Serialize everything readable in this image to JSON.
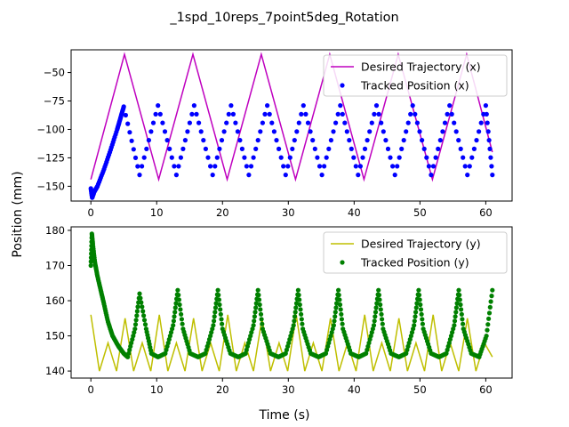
{
  "chart_data": {
    "title": "_1spd_10reps_7point5deg_Rotation",
    "ylabel": "Position (mm)",
    "xlabel": "Time (s)",
    "subplots": [
      {
        "id": "x",
        "type": "line+scatter",
        "xlim": [
          -3,
          64
        ],
        "ylim": [
          -163,
          -30
        ],
        "xticks": [
          0,
          10,
          20,
          30,
          40,
          50,
          60
        ],
        "yticks": [
          -150,
          -125,
          -100,
          -75,
          -50
        ],
        "legend_position": "upper-right",
        "series": [
          {
            "name": "Desired Trajectory (x)",
            "kind": "line",
            "color": "#bf00bf",
            "x": [
              0,
              5.1,
              10.3,
              15.5,
              20.7,
              25.9,
              31.1,
              36.3,
              41.5,
              46.7,
              51.9,
              57.1,
              61.0
            ],
            "y": [
              -144,
              -34,
              -144,
              -34,
              -144,
              -34,
              -144,
              -34,
              -144,
              -34,
              -144,
              -34,
              -120
            ]
          },
          {
            "name": "Tracked Position (x)",
            "kind": "points",
            "color": "#0000ff",
            "x": [
              0,
              0.2,
              0.5,
              1.0,
              2.0,
              3.0,
              4.0,
              4.5,
              5.0,
              7.4,
              10.2,
              13.0,
              15.7,
              18.5,
              21.3,
              24.0,
              26.8,
              29.6,
              32.3,
              35.1,
              37.9,
              40.6,
              43.4,
              46.2,
              48.9,
              51.7,
              54.5,
              57.2,
              60.0,
              61.0
            ],
            "y": [
              -152,
              -160,
              -155,
              -150,
              -135,
              -118,
              -100,
              -90,
              -80,
              -140,
              -79,
              -140,
              -79,
              -140,
              -79,
              -140,
              -79,
              -140,
              -79,
              -140,
              -79,
              -140,
              -79,
              -140,
              -79,
              -140,
              -79,
              -140,
              -79,
              -140
            ]
          }
        ]
      },
      {
        "id": "y",
        "type": "line+scatter",
        "xlim": [
          -3,
          64
        ],
        "ylim": [
          138,
          181
        ],
        "xticks": [
          0,
          10,
          20,
          30,
          40,
          50,
          60
        ],
        "yticks": [
          140,
          150,
          160,
          170,
          180
        ],
        "legend_position": "upper-right",
        "series": [
          {
            "name": "Desired Trajectory (y)",
            "kind": "line",
            "color": "#bfbf00",
            "x": [
              0,
              1.3,
              2.6,
              3.9,
              5.2,
              6.5,
              7.8,
              9.1,
              10.4,
              11.7,
              13.0,
              14.3,
              15.6,
              16.9,
              18.2,
              19.5,
              20.8,
              22.1,
              23.4,
              24.7,
              26.0,
              27.3,
              28.6,
              29.9,
              31.2,
              32.5,
              33.8,
              35.1,
              36.4,
              37.7,
              39.0,
              40.3,
              41.6,
              42.9,
              44.2,
              45.5,
              46.8,
              48.1,
              49.4,
              50.7,
              52.0,
              53.3,
              54.6,
              55.9,
              57.2,
              58.5,
              59.8,
              61.0
            ],
            "y": [
              156,
              140,
              148,
              140,
              155,
              140,
              148,
              140,
              156,
              140,
              148,
              140,
              155,
              140,
              148,
              140,
              156,
              140,
              148,
              140,
              155,
              140,
              148,
              140,
              156,
              140,
              148,
              140,
              155,
              140,
              148,
              140,
              156,
              140,
              148,
              140,
              155,
              140,
              148,
              140,
              156,
              140,
              148,
              140,
              155,
              140,
              148,
              144
            ]
          },
          {
            "name": "Tracked Position (y)",
            "kind": "points",
            "color": "#008000",
            "x": [
              0,
              0.15,
              0.3,
              0.6,
              1.0,
              1.5,
              2.0,
              2.6,
              3.3,
              4.2,
              5.0,
              5.6,
              6.7,
              7.4,
              8.4,
              9.2,
              10.2,
              11.3,
              12.5,
              13.2,
              14.0,
              15.1,
              16.3,
              17.4,
              18.6,
              19.3,
              20.0,
              21.2,
              22.4,
              23.5,
              24.7,
              25.4,
              26.1,
              27.3,
              28.5,
              29.6,
              30.8,
              31.5,
              32.2,
              33.4,
              34.6,
              35.7,
              36.9,
              37.6,
              38.3,
              39.5,
              40.7,
              41.8,
              43.0,
              43.7,
              44.4,
              45.6,
              46.8,
              47.9,
              49.1,
              49.8,
              50.5,
              51.7,
              52.9,
              54.0,
              55.2,
              55.9,
              56.6,
              57.8,
              59.0,
              60.1,
              61.0
            ],
            "y": [
              170,
              179,
              176,
              171,
              167,
              163,
              159,
              154,
              150,
              147,
              145,
              144,
              152,
              162,
              152,
              145,
              144,
              145,
              153,
              163,
              152,
              145,
              144,
              145,
              153,
              163,
              152,
              145,
              144,
              145,
              153,
              163,
              152,
              145,
              144,
              145,
              153,
              163,
              152,
              145,
              144,
              145,
              153,
              163,
              152,
              145,
              144,
              145,
              153,
              163,
              152,
              145,
              144,
              145,
              153,
              163,
              152,
              145,
              144,
              145,
              153,
              163,
              152,
              145,
              144,
              150,
              163
            ]
          }
        ]
      }
    ]
  }
}
